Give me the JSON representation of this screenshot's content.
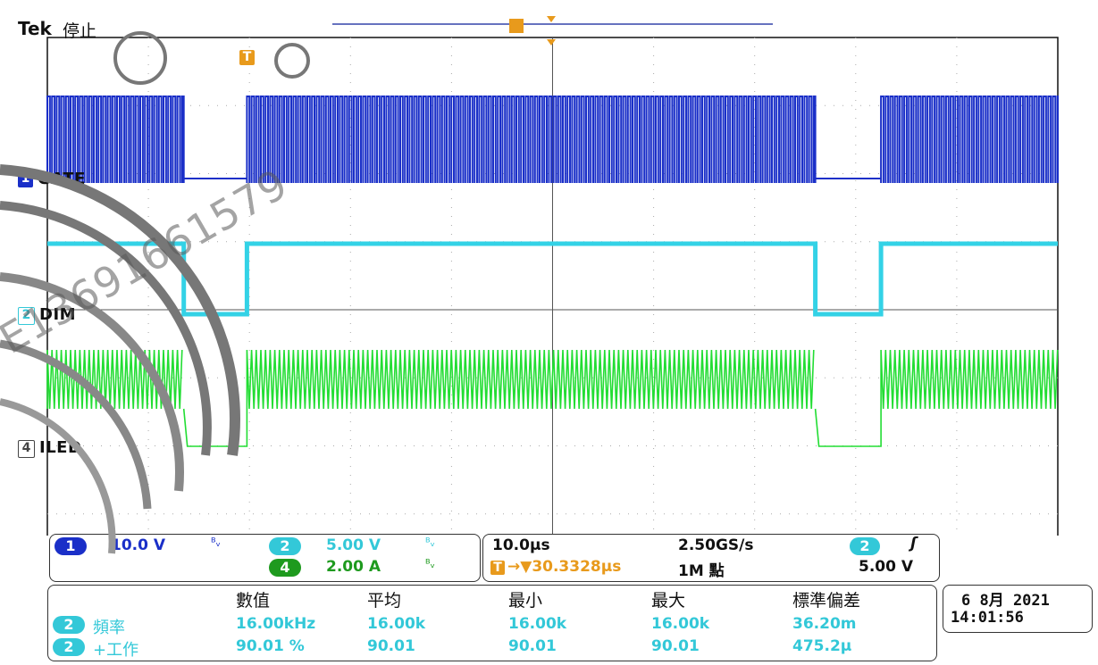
{
  "header": {
    "brand": "Tek",
    "status": "停止"
  },
  "colors": {
    "ch1": "#1a2fc8",
    "ch2": "#33d2e6",
    "ch4": "#22dd33",
    "trigger": "#e89a1c",
    "grid": "#999999",
    "frame": "#111111"
  },
  "trigger_marker": "T",
  "channels": [
    {
      "id": "1",
      "label": "GATE"
    },
    {
      "id": "2",
      "label": "DIM"
    },
    {
      "id": "4",
      "label": "ILED"
    }
  ],
  "scale_panel": {
    "ch1": {
      "num": "1",
      "scale": "10.0 V"
    },
    "ch2": {
      "num": "2",
      "scale": "5.00 V"
    },
    "ch4": {
      "num": "4",
      "scale": "2.00 A"
    }
  },
  "timebase": {
    "time_div": "10.0µs",
    "sample_rate": "2.50GS/s",
    "trigger_offset": "→▼30.3328µs",
    "record_length": "1M 點",
    "trigger_source": "2",
    "trigger_slope": "ʃ",
    "trigger_level": "5.00 V"
  },
  "measurements": {
    "headers": [
      "數值",
      "平均",
      "最小",
      "最大",
      "標準偏差"
    ],
    "rows": [
      {
        "ch": "2",
        "label": "頻率",
        "values": [
          "16.00kHz",
          "16.00k",
          "16.00k",
          "16.00k",
          "36.20m"
        ]
      },
      {
        "ch": "2",
        "label": "+工作",
        "values": [
          "90.01 %",
          "90.01",
          "90.01",
          "90.01",
          "475.2µ"
        ]
      }
    ]
  },
  "datetime": {
    "date": "6 8月  2021",
    "time": "14:01:56"
  },
  "watermark": "E13691661579",
  "chart_data": {
    "type": "line",
    "title": "",
    "xlabel": "",
    "ylabel": "",
    "grid": true,
    "x_divisions": 10,
    "y_divisions": 8,
    "time_per_div_us": 10.0,
    "series": [
      {
        "name": "GATE",
        "channel": 1,
        "description_on_off": [
          [
            0,
            2.6,
            "switching"
          ],
          [
            2.6,
            3.9,
            "low"
          ],
          [
            3.9,
            15.2,
            "switching"
          ],
          [
            15.2,
            16.5,
            "low"
          ],
          [
            16.5,
            20,
            "switching"
          ]
        ]
      },
      {
        "name": "DIM",
        "channel": 2,
        "levels": [
          [
            0,
            2.6,
            "high"
          ],
          [
            2.6,
            3.9,
            "low"
          ],
          [
            3.9,
            15.2,
            "high"
          ],
          [
            15.2,
            16.5,
            "low"
          ],
          [
            16.5,
            20,
            "high"
          ]
        ]
      },
      {
        "name": "ILED",
        "channel": 4,
        "levels": [
          [
            0,
            2.6,
            "ripple"
          ],
          [
            2.6,
            3.9,
            "low"
          ],
          [
            3.9,
            15.2,
            "ripple"
          ],
          [
            15.2,
            16.5,
            "low"
          ],
          [
            16.5,
            20,
            "ripple"
          ]
        ]
      }
    ],
    "time_segments_x_divs": [
      [
        0,
        2.7
      ],
      [
        2.7,
        3.95
      ],
      [
        3.95,
        15.2
      ],
      [
        15.2,
        16.5
      ],
      [
        16.5,
        20
      ]
    ]
  }
}
